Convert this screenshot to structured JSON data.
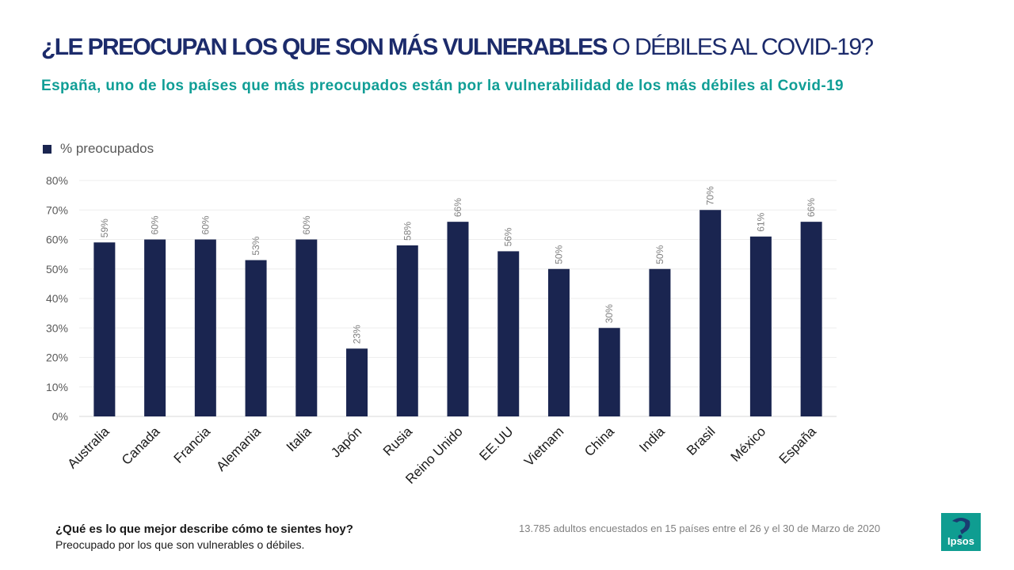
{
  "header": {
    "title_strong": "¿LE PREOCUPAN LOS QUE SON  MÁS VULNERABLES",
    "title_light": " O DÉBILES AL COVID-19?",
    "subtitle": "España, uno de los países que más preocupados están por la vulnerabilidad de los más débiles al Covid-19"
  },
  "chart_data": {
    "type": "bar",
    "categories": [
      "Australia",
      "Canada",
      "Francia",
      "Alemania",
      "Italia",
      "Japón",
      "Rusia",
      "Reino Unido",
      "EE.UU",
      "Vietnam",
      "China",
      "India",
      "Brasil",
      "México",
      "España"
    ],
    "series": [
      {
        "name": "% preocupados",
        "values": [
          59,
          60,
          60,
          53,
          60,
          23,
          58,
          66,
          56,
          50,
          30,
          50,
          70,
          61,
          66
        ],
        "labels": [
          "59%",
          "60%",
          "60%",
          "53%",
          "60%",
          "23%",
          "58%",
          "66%",
          "56%",
          "50%",
          "30%",
          "50%",
          "70%",
          "61%",
          "66%"
        ],
        "color": "#1a2550"
      }
    ],
    "ylim": [
      0,
      80
    ],
    "yticks": [
      0,
      10,
      20,
      30,
      40,
      50,
      60,
      70,
      80
    ],
    "ytick_labels": [
      "0%",
      "10%",
      "20%",
      "30%",
      "40%",
      "50%",
      "60%",
      "70%",
      "80%"
    ],
    "grid": true,
    "legend_position": "top-left",
    "title": "",
    "xlabel": "",
    "ylabel": ""
  },
  "legend": {
    "label": "% preocupados",
    "color": "#1a2550"
  },
  "footer": {
    "question": "¿Qué es lo que mejor describe cómo te sientes hoy?",
    "answer": "Preocupado por los que son vulnerables  o débiles.",
    "note": "13.785 adultos encuestados en 15 países entre el 26 y el 30 de Marzo de 2020"
  },
  "logo": {
    "text": "Ipsos",
    "color": "#0f9d91"
  },
  "colors": {
    "title": "#1c2b6b",
    "subtitle": "#109e96",
    "bar": "#1a2550"
  }
}
